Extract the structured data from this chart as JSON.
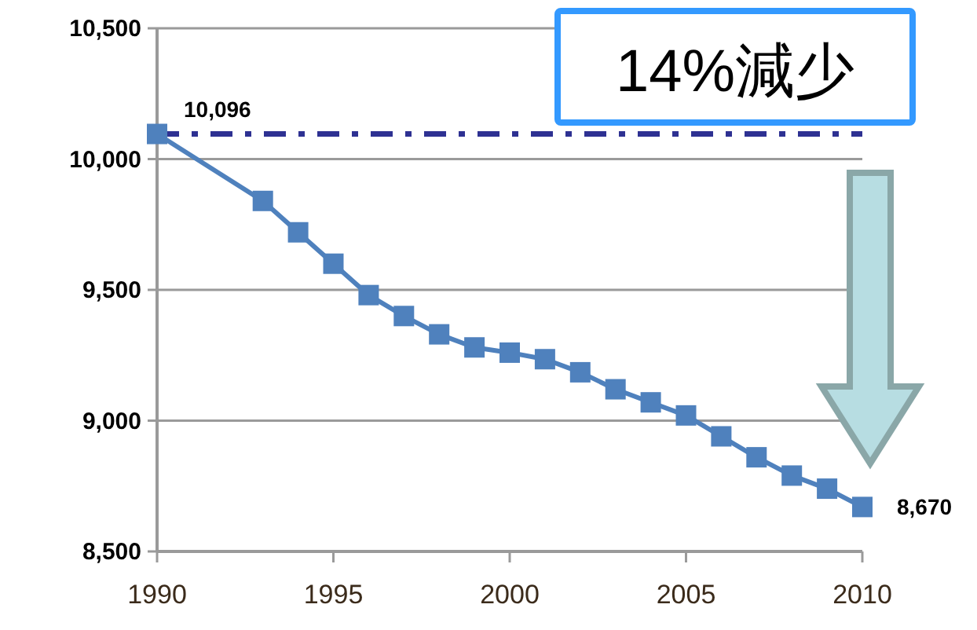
{
  "chart_data": {
    "type": "line",
    "x": [
      1990,
      1993,
      1994,
      1995,
      1996,
      1997,
      1998,
      1999,
      2000,
      2001,
      2002,
      2003,
      2004,
      2005,
      2006,
      2007,
      2008,
      2009,
      2010
    ],
    "series": [
      {
        "color": "#4f81bd",
        "values": [
          10096,
          9840,
          9720,
          9600,
          9480,
          9400,
          9330,
          9280,
          9260,
          9235,
          9185,
          9120,
          9070,
          9020,
          8940,
          8860,
          8790,
          8740,
          8670
        ],
        "value_labels": [
          "10,096",
          null,
          null,
          null,
          null,
          null,
          null,
          null,
          null,
          null,
          null,
          null,
          null,
          null,
          null,
          null,
          null,
          null,
          "8,670"
        ]
      }
    ],
    "xlim": [
      1990,
      2010
    ],
    "xticks": [
      1990,
      1995,
      2000,
      2005,
      2010
    ],
    "ylim": [
      8500,
      10500
    ],
    "yticks": [
      {
        "value": 8500,
        "label": "8,500"
      },
      {
        "value": 9000,
        "label": "9,000"
      },
      {
        "value": 9500,
        "label": "9,500"
      },
      {
        "value": 10000,
        "label": "10,000"
      },
      {
        "value": 10500,
        "label": "10,500"
      }
    ],
    "grid": "y",
    "marker": "square",
    "line_style": "solid",
    "ref_lines": [
      {
        "axis": "y",
        "value": 10096,
        "color": "#2e3192",
        "line_style": "dashdot"
      }
    ],
    "annotations": [
      "14%減少"
    ]
  }
}
